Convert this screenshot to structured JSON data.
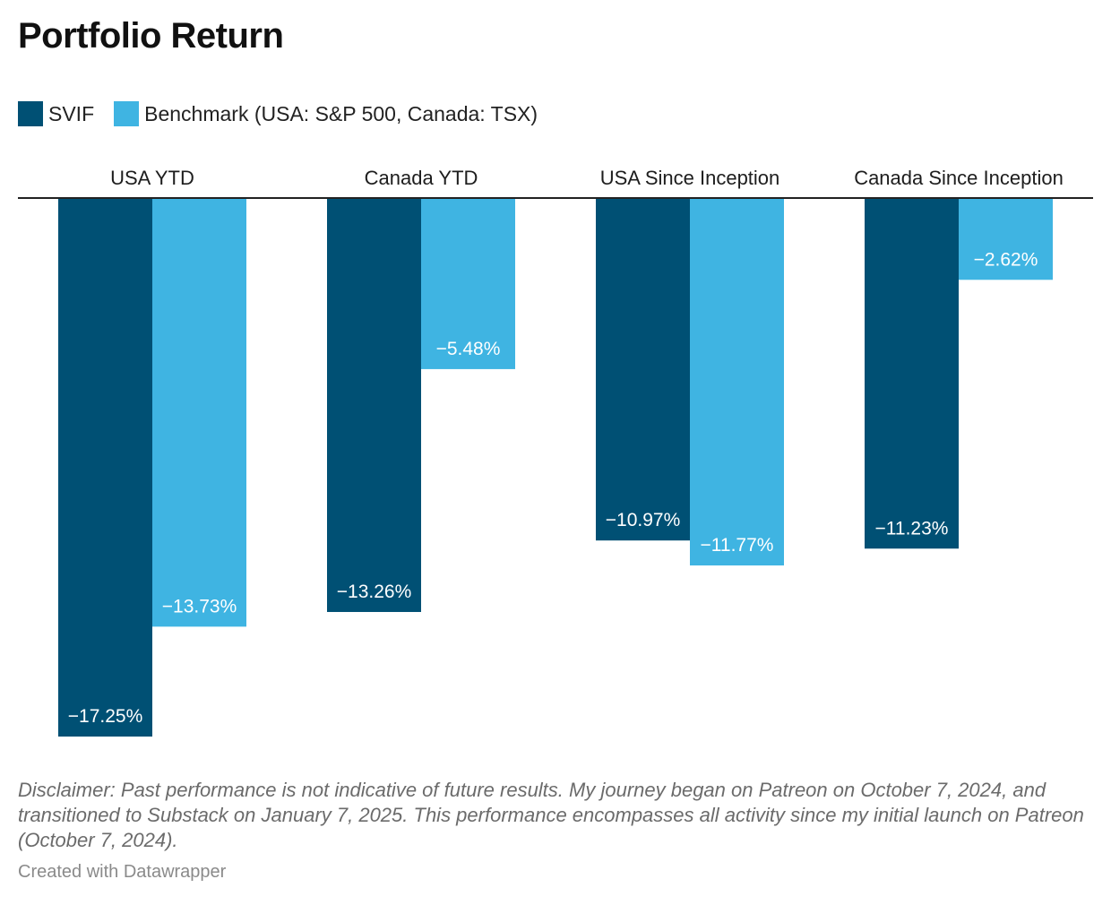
{
  "title": "Portfolio Return",
  "legend": [
    {
      "label": "SVIF",
      "color": "#005074"
    },
    {
      "label": "Benchmark (USA: S&P 500, Canada: TSX)",
      "color": "#3fb4e2"
    }
  ],
  "chart_data": {
    "type": "bar",
    "orientation": "vertical",
    "categories": [
      "USA YTD",
      "Canada YTD",
      "USA Since Inception",
      "Canada Since Inception"
    ],
    "series": [
      {
        "name": "SVIF",
        "color": "#005074",
        "values": [
          -17.25,
          -13.26,
          -10.97,
          -11.23
        ],
        "labels": [
          "−17.25%",
          "−13.26%",
          "−10.97%",
          "−11.23%"
        ]
      },
      {
        "name": "Benchmark (USA: S&P 500, Canada: TSX)",
        "color": "#3fb4e2",
        "values": [
          -13.73,
          -5.48,
          -11.77,
          -2.62
        ],
        "labels": [
          "−13.73%",
          "−5.48%",
          "−11.77%",
          "−2.62%"
        ]
      }
    ],
    "ylim": [
      -17.25,
      0
    ],
    "category_label_position": "top",
    "unit": "%"
  },
  "notes": "Disclaimer: Past performance is not indicative of future results. My journey began on Patreon on October 7, 2024, and transitioned to Substack on January 7, 2025. This performance encompasses all activity since my initial launch on Patreon (October 7, 2024).",
  "credit": "Created with Datawrapper"
}
